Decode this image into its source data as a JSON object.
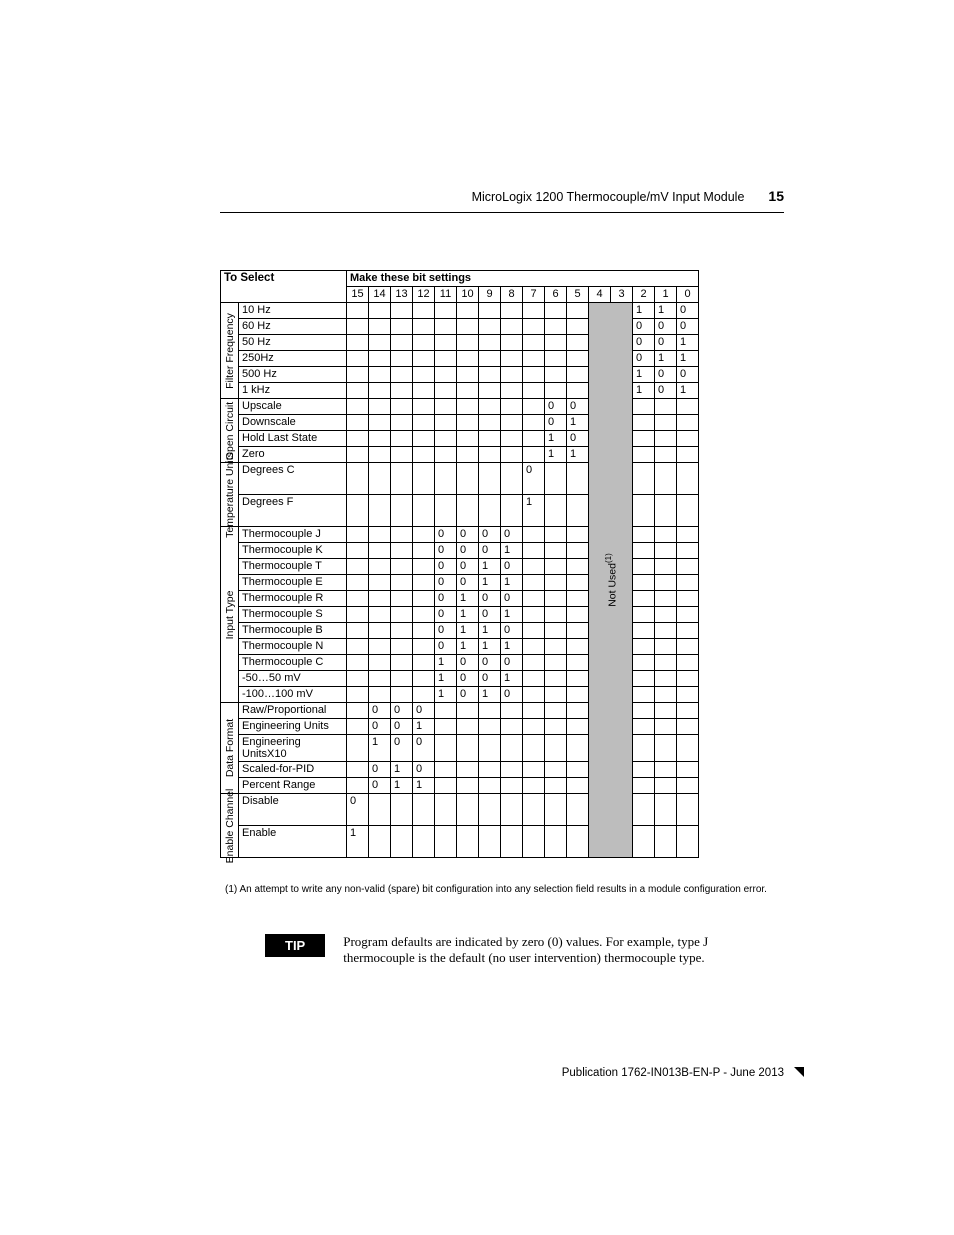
{
  "header": {
    "title": "MicroLogix 1200 Thermocouple/mV Input Module",
    "page_number": "15"
  },
  "table": {
    "headers": {
      "to_select": "To Select",
      "make_settings": "Make these bit settings",
      "bits": [
        "15",
        "14",
        "13",
        "12",
        "11",
        "10",
        "9",
        "8",
        "7",
        "6",
        "5",
        "4",
        "3",
        "2",
        "1",
        "0"
      ]
    },
    "not_used_label": "Not Used",
    "not_used_sup": "(1)",
    "categories": [
      {
        "label": "Filter Frequency",
        "rows": [
          {
            "opt": "10 Hz",
            "cells": {
              "2": "1",
              "1": "1",
              "0": "0"
            }
          },
          {
            "opt": "60 Hz",
            "cells": {
              "2": "0",
              "1": "0",
              "0": "0"
            }
          },
          {
            "opt": "50 Hz",
            "cells": {
              "2": "0",
              "1": "0",
              "0": "1"
            }
          },
          {
            "opt": "250Hz",
            "cells": {
              "2": "0",
              "1": "1",
              "0": "1"
            }
          },
          {
            "opt": "500 Hz",
            "cells": {
              "2": "1",
              "1": "0",
              "0": "0"
            }
          },
          {
            "opt": "1 kHz",
            "cells": {
              "2": "1",
              "1": "0",
              "0": "1"
            }
          }
        ]
      },
      {
        "label": "Open Circuit",
        "rows": [
          {
            "opt": "Upscale",
            "cells": {
              "6": "0",
              "5": "0"
            }
          },
          {
            "opt": "Downscale",
            "cells": {
              "6": "0",
              "5": "1"
            }
          },
          {
            "opt": "Hold Last State",
            "cells": {
              "6": "1",
              "5": "0"
            }
          },
          {
            "opt": "Zero",
            "cells": {
              "6": "1",
              "5": "1"
            }
          }
        ]
      },
      {
        "label": "Temperature Units",
        "rows": [
          {
            "opt": "Degrees C",
            "cells": {
              "7": "0"
            },
            "tall": true
          },
          {
            "opt": "Degrees F",
            "cells": {
              "7": "1"
            },
            "tall": true
          }
        ]
      },
      {
        "label": "Input Type",
        "rows": [
          {
            "opt": "Thermocouple J",
            "cells": {
              "11": "0",
              "10": "0",
              "9": "0",
              "8": "0"
            }
          },
          {
            "opt": "Thermocouple K",
            "cells": {
              "11": "0",
              "10": "0",
              "9": "0",
              "8": "1"
            }
          },
          {
            "opt": "Thermocouple T",
            "cells": {
              "11": "0",
              "10": "0",
              "9": "1",
              "8": "0"
            }
          },
          {
            "opt": "Thermocouple E",
            "cells": {
              "11": "0",
              "10": "0",
              "9": "1",
              "8": "1"
            }
          },
          {
            "opt": "Thermocouple R",
            "cells": {
              "11": "0",
              "10": "1",
              "9": "0",
              "8": "0"
            }
          },
          {
            "opt": "Thermocouple S",
            "cells": {
              "11": "0",
              "10": "1",
              "9": "0",
              "8": "1"
            }
          },
          {
            "opt": "Thermocouple B",
            "cells": {
              "11": "0",
              "10": "1",
              "9": "1",
              "8": "0"
            }
          },
          {
            "opt": "Thermocouple N",
            "cells": {
              "11": "0",
              "10": "1",
              "9": "1",
              "8": "1"
            }
          },
          {
            "opt": "Thermocouple C",
            "cells": {
              "11": "1",
              "10": "0",
              "9": "0",
              "8": "0"
            }
          },
          {
            "opt": "-50…50 mV",
            "cells": {
              "11": "1",
              "10": "0",
              "9": "0",
              "8": "1"
            }
          },
          {
            "opt": "-100…100 mV",
            "cells": {
              "11": "1",
              "10": "0",
              "9": "1",
              "8": "0"
            }
          }
        ]
      },
      {
        "label": "Data Format",
        "rows": [
          {
            "opt": "Raw/Proportional",
            "cells": {
              "14": "0",
              "13": "0",
              "12": "0"
            }
          },
          {
            "opt": "Engineering Units",
            "cells": {
              "14": "0",
              "13": "0",
              "12": "1"
            }
          },
          {
            "opt": "Engineering UnitsX10",
            "cells": {
              "14": "1",
              "13": "0",
              "12": "0"
            }
          },
          {
            "opt": "Scaled-for-PID",
            "cells": {
              "14": "0",
              "13": "1",
              "12": "0"
            }
          },
          {
            "opt": "Percent Range",
            "cells": {
              "14": "0",
              "13": "1",
              "12": "1"
            }
          }
        ]
      },
      {
        "label": "Enable Channel",
        "rows": [
          {
            "opt": "Disable",
            "cells": {
              "15": "0"
            },
            "tall": true
          },
          {
            "opt": "Enable",
            "cells": {
              "15": "1"
            },
            "tall": true
          }
        ]
      }
    ]
  },
  "footnote": "(1)   An attempt to write any non-valid (spare) bit configuration into any selection field results in a module configuration error.",
  "tip": {
    "label": "TIP",
    "text": "Program defaults are indicated by zero (0) values. For example, type J thermocouple is the default (no user intervention) thermocouple type."
  },
  "footer": "Publication 1762-IN013B-EN-P - June 2013",
  "colors": {
    "page_bg": "#ffffff",
    "text": "#000000",
    "not_used_bg": "#bdbdbd",
    "tip_bg": "#000000",
    "tip_fg": "#ffffff"
  }
}
